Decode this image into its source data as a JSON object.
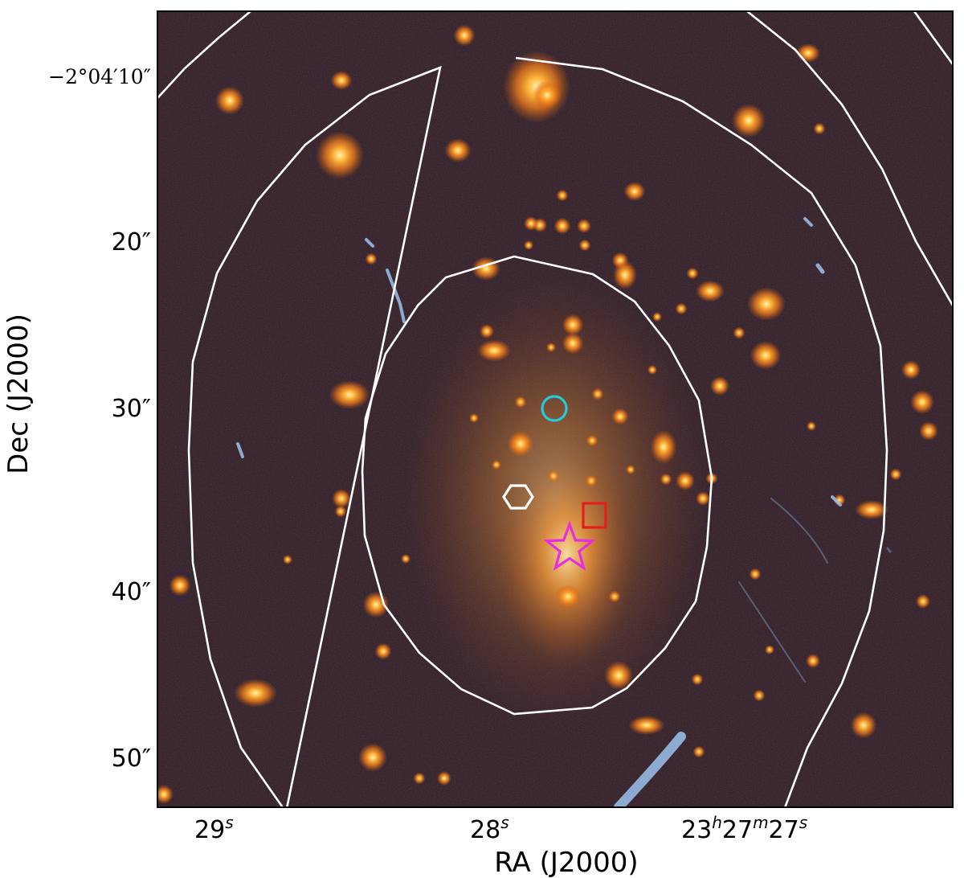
{
  "figure": {
    "x_axis": {
      "label": "RA (J2000)",
      "ticks": [
        {
          "base": "29",
          "sup": "s"
        },
        {
          "base": "28",
          "sup": "s"
        },
        {
          "parts": [
            [
              "23",
              "h"
            ],
            [
              "27",
              "m"
            ],
            [
              "27",
              "s"
            ]
          ]
        }
      ]
    },
    "y_axis": {
      "label": "Dec (J2000)",
      "ticks": [
        "−2°04′10″",
        "20″",
        "30″",
        "40″",
        "50″"
      ]
    },
    "markers": [
      {
        "shape": "circle",
        "color": "#26c9d6"
      },
      {
        "shape": "hexagon",
        "color": "#ffffff"
      },
      {
        "shape": "square",
        "color": "#e0201a"
      },
      {
        "shape": "star",
        "color": "#e52ee0"
      }
    ],
    "contours": {
      "color": "#ffffff",
      "count": 4
    },
    "colors": {
      "sky_background": "#2b1c13",
      "galaxy_core": "#fff1a8",
      "galaxy_halo": "#ff8a1e",
      "arc_blue": "#8fb6e6"
    }
  }
}
